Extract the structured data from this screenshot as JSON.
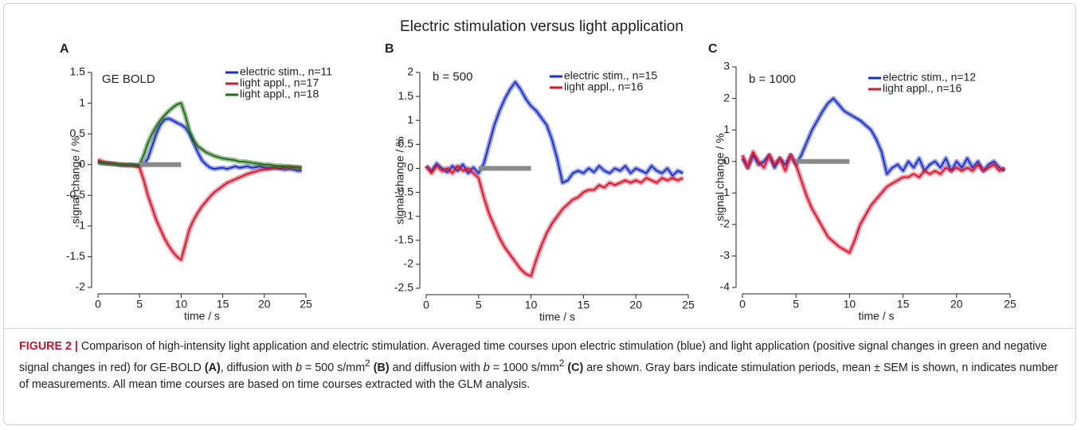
{
  "title": "Electric stimulation versus light application",
  "caption": [
    "FIGURE 2 |",
    " Comparison of high-intensity light application and electric stimulation. Averaged time courses upon electric stimulation (blue) and light application (positive signal changes in green and negative signal changes in red) for GE-BOLD",
    "(A)",
    ", diffusion with",
    "b",
    "= 500 s/mm",
    "2",
    "(B)",
    " and diffusion with",
    "b",
    "= 1000 s/mm",
    "2",
    "(C)",
    " are shown. Gray bars indicate stimulation periods, mean ± SEM is shown, n indicates number of measurements. All mean time courses are based on time courses extracted with the GLM analysis."
  ],
  "chart_data": [
    {
      "type": "line",
      "panel": "A",
      "annotation": "GE BOLD",
      "xlabel": "time / s",
      "ylabel": "signal change / %",
      "legend": "upper right",
      "xlim": [
        0,
        25
      ],
      "xticks": [
        0,
        5,
        10,
        15,
        20,
        25
      ],
      "ylim": [
        -2,
        1.5
      ],
      "yticks": [
        -2,
        -1.5,
        -1,
        -0.5,
        0,
        0.5,
        1,
        1.5
      ],
      "stimulation_x": [
        5,
        10
      ],
      "stimulation_color": "#8a8a8a",
      "x": [
        0,
        0.5,
        1,
        1.5,
        2,
        2.5,
        3,
        3.5,
        4,
        4.5,
        5,
        5.5,
        6,
        6.5,
        7,
        7.5,
        8,
        8.5,
        9,
        9.5,
        10,
        10.5,
        11,
        11.5,
        12,
        12.5,
        13,
        13.5,
        14,
        14.5,
        15,
        15.5,
        16,
        16.5,
        17,
        17.5,
        18,
        18.5,
        19,
        19.5,
        20,
        20.5,
        21,
        21.5,
        22,
        22.5,
        23,
        23.5,
        24,
        24.5
      ],
      "series": [
        {
          "name": "electric stim., n=11",
          "color": "#1a2fc4",
          "values": [
            0.05,
            0.03,
            0.02,
            0.02,
            0.01,
            0,
            0,
            -0.01,
            0,
            -0.01,
            -0.02,
            0,
            0.1,
            0.3,
            0.5,
            0.65,
            0.73,
            0.75,
            0.72,
            0.68,
            0.65,
            0.6,
            0.5,
            0.35,
            0.2,
            0.07,
            0,
            -0.05,
            -0.07,
            -0.06,
            -0.05,
            -0.07,
            -0.05,
            -0.03,
            -0.05,
            -0.04,
            -0.03,
            -0.05,
            -0.04,
            -0.03,
            -0.05,
            -0.06,
            -0.05,
            -0.06,
            -0.07,
            -0.08,
            -0.07,
            -0.08,
            -0.1,
            -0.1
          ]
        },
        {
          "name": "light appl., n=17",
          "color": "#d8152f",
          "values": [
            0.08,
            0.05,
            0.03,
            0.02,
            0.01,
            0,
            0,
            -0.01,
            -0.01,
            -0.02,
            -0.05,
            -0.25,
            -0.5,
            -0.7,
            -0.9,
            -1.05,
            -1.2,
            -1.32,
            -1.42,
            -1.5,
            -1.55,
            -1.3,
            -1.05,
            -0.9,
            -0.78,
            -0.68,
            -0.6,
            -0.52,
            -0.45,
            -0.4,
            -0.35,
            -0.3,
            -0.27,
            -0.24,
            -0.21,
            -0.18,
            -0.15,
            -0.13,
            -0.11,
            -0.09,
            -0.08,
            -0.07,
            -0.06,
            -0.05,
            -0.05,
            -0.04,
            -0.04,
            -0.04,
            -0.05,
            -0.05
          ]
        },
        {
          "name": "light appl., n=18",
          "color": "#1f6b16",
          "values": [
            0.03,
            0.02,
            0.02,
            0.01,
            0.01,
            0,
            -0.01,
            0,
            -0.01,
            -0.01,
            0,
            0.15,
            0.35,
            0.5,
            0.62,
            0.72,
            0.8,
            0.87,
            0.93,
            0.98,
            1.0,
            0.8,
            0.55,
            0.4,
            0.3,
            0.25,
            0.2,
            0.17,
            0.14,
            0.12,
            0.1,
            0.09,
            0.08,
            0.07,
            0.05,
            0.05,
            0.04,
            0.03,
            0.02,
            0.01,
            0,
            0,
            -0.01,
            -0.02,
            -0.02,
            -0.03,
            -0.03,
            -0.04,
            -0.04,
            -0.05
          ]
        }
      ]
    },
    {
      "type": "line",
      "panel": "B",
      "annotation": "b = 500",
      "xlabel": "time / s",
      "ylabel": "signal change / %",
      "legend": "upper right",
      "xlim": [
        0,
        25
      ],
      "xticks": [
        0,
        5,
        10,
        15,
        20,
        25
      ],
      "ylim": [
        -2.5,
        2
      ],
      "yticks": [
        -2.5,
        -2,
        -1.5,
        -1,
        -0.5,
        0,
        0.5,
        1,
        1.5,
        2
      ],
      "stimulation_x": [
        5,
        10
      ],
      "stimulation_color": "#8a8a8a",
      "x": [
        0,
        0.5,
        1,
        1.5,
        2,
        2.5,
        3,
        3.5,
        4,
        4.5,
        5,
        5.5,
        6,
        6.5,
        7,
        7.5,
        8,
        8.5,
        9,
        9.5,
        10,
        10.5,
        11,
        11.5,
        12,
        12.5,
        13,
        13.5,
        14,
        14.5,
        15,
        15.5,
        16,
        16.5,
        17,
        17.5,
        18,
        18.5,
        19,
        19.5,
        20,
        20.5,
        21,
        21.5,
        22,
        22.5,
        23,
        23.5,
        24,
        24.5
      ],
      "series": [
        {
          "name": "electric stim., n=15",
          "color": "#1a2fc4",
          "values": [
            0.05,
            -0.05,
            0.1,
            0,
            -0.08,
            0.05,
            -0.05,
            0.08,
            -0.1,
            0.02,
            -0.1,
            0.1,
            0.5,
            0.9,
            1.2,
            1.45,
            1.65,
            1.8,
            1.65,
            1.45,
            1.3,
            1.2,
            1.05,
            0.9,
            0.6,
            0.2,
            -0.3,
            -0.25,
            -0.1,
            -0.05,
            -0.1,
            0,
            -0.08,
            0.05,
            -0.05,
            -0.1,
            0,
            -0.05,
            0.05,
            -0.1,
            0,
            -0.05,
            -0.1,
            0.05,
            -0.05,
            -0.1,
            0,
            -0.15,
            -0.05,
            -0.1
          ]
        },
        {
          "name": "light appl., n=16",
          "color": "#d8152f",
          "values": [
            0.05,
            -0.1,
            0.05,
            -0.05,
            0,
            -0.1,
            0.05,
            -0.05,
            0,
            -0.1,
            -0.2,
            -0.6,
            -0.95,
            -1.2,
            -1.45,
            -1.65,
            -1.8,
            -1.95,
            -2.1,
            -2.2,
            -2.25,
            -1.9,
            -1.6,
            -1.35,
            -1.15,
            -1.0,
            -0.85,
            -0.75,
            -0.65,
            -0.6,
            -0.5,
            -0.45,
            -0.45,
            -0.35,
            -0.4,
            -0.3,
            -0.35,
            -0.3,
            -0.25,
            -0.3,
            -0.25,
            -0.3,
            -0.2,
            -0.25,
            -0.3,
            -0.2,
            -0.25,
            -0.2,
            -0.25,
            -0.2
          ]
        }
      ]
    },
    {
      "type": "line",
      "panel": "C",
      "annotation": "b = 1000",
      "xlabel": "time / s",
      "ylabel": "signal change / %",
      "legend": "upper right",
      "xlim": [
        0,
        25
      ],
      "xticks": [
        0,
        5,
        10,
        15,
        20,
        25
      ],
      "ylim": [
        -4,
        3
      ],
      "yticks": [
        -4,
        -3,
        -2,
        -1,
        0,
        1,
        2,
        3
      ],
      "stimulation_x": [
        5,
        10
      ],
      "stimulation_color": "#8a8a8a",
      "x": [
        0,
        0.5,
        1,
        1.5,
        2,
        2.5,
        3,
        3.5,
        4,
        4.5,
        5,
        5.5,
        6,
        6.5,
        7,
        7.5,
        8,
        8.5,
        9,
        9.5,
        10,
        10.5,
        11,
        11.5,
        12,
        12.5,
        13,
        13.5,
        14,
        14.5,
        15,
        15.5,
        16,
        16.5,
        17,
        17.5,
        18,
        18.5,
        19,
        19.5,
        20,
        20.5,
        21,
        21.5,
        22,
        22.5,
        23,
        23.5,
        24,
        24.5
      ],
      "series": [
        {
          "name": "electric stim., n=12",
          "color": "#1a2fc4",
          "values": [
            0.1,
            -0.2,
            0.2,
            -0.1,
            0,
            0.2,
            -0.2,
            0.1,
            -0.1,
            0.2,
            -0.1,
            0.2,
            0.6,
            1.0,
            1.3,
            1.6,
            1.85,
            2.0,
            1.8,
            1.6,
            1.5,
            1.4,
            1.3,
            1.15,
            1.0,
            0.7,
            0.3,
            -0.4,
            -0.2,
            -0.1,
            -0.3,
            0,
            -0.2,
            0.1,
            -0.3,
            -0.1,
            0,
            -0.2,
            0.1,
            -0.3,
            0,
            -0.2,
            0.1,
            -0.2,
            0,
            -0.3,
            -0.1,
            0,
            -0.2,
            -0.3
          ]
        },
        {
          "name": "light appl., n=16",
          "color": "#d8152f",
          "values": [
            0.2,
            -0.2,
            0.3,
            0,
            -0.2,
            0.2,
            -0.1,
            0.1,
            -0.3,
            0.2,
            -0.1,
            -0.6,
            -1.1,
            -1.5,
            -1.8,
            -2.1,
            -2.4,
            -2.55,
            -2.7,
            -2.8,
            -2.9,
            -2.5,
            -2.0,
            -1.7,
            -1.4,
            -1.2,
            -1.0,
            -0.8,
            -0.7,
            -0.6,
            -0.5,
            -0.5,
            -0.4,
            -0.5,
            -0.3,
            -0.4,
            -0.3,
            -0.4,
            -0.2,
            -0.3,
            -0.2,
            -0.3,
            -0.2,
            -0.3,
            -0.1,
            -0.3,
            -0.2,
            -0.1,
            -0.3,
            -0.2
          ]
        }
      ]
    }
  ]
}
